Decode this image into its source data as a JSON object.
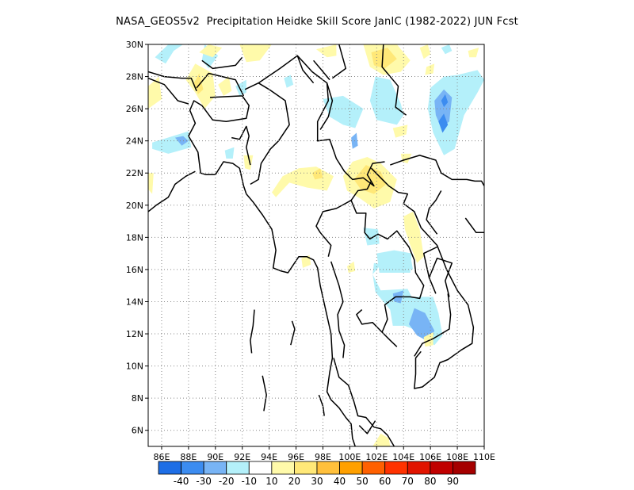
{
  "title": "NASA_GEOS5v2  Precipitation Heidke Skill Score JanIC (1982-2022) JUN Fcst",
  "map": {
    "lat_ticks": [
      "30N",
      "28N",
      "26N",
      "24N",
      "22N",
      "20N",
      "18N",
      "16N",
      "14N",
      "12N",
      "10N",
      "8N",
      "6N"
    ],
    "lon_ticks": [
      "86E",
      "88E",
      "90E",
      "92E",
      "94E",
      "96E",
      "98E",
      "100E",
      "102E",
      "104E",
      "106E",
      "108E",
      "110E"
    ],
    "lat_range": [
      5,
      30
    ],
    "lon_range": [
      85,
      110
    ],
    "grid": "dotted"
  },
  "colorbar": {
    "labels": [
      "-40",
      "-30",
      "-20",
      "-10",
      "10",
      "20",
      "30",
      "40",
      "50",
      "60",
      "70",
      "80",
      "90"
    ],
    "colors": [
      "#1e6ee6",
      "#3c8cf0",
      "#78b4f5",
      "#b4f0fa",
      "#ffffff",
      "#fffaaa",
      "#ffe878",
      "#ffc03c",
      "#ffa000",
      "#ff6000",
      "#ff3200",
      "#e11400",
      "#c00000",
      "#a50000"
    ]
  },
  "areas": [
    {
      "name": "skill-patch-positive",
      "color": "#fffaaa"
    },
    {
      "name": "skill-patch-positive-strong",
      "color": "#ffe878"
    },
    {
      "name": "skill-patch-negative",
      "color": "#b4f0fa"
    },
    {
      "name": "skill-patch-negative-strong",
      "color": "#78b4f5"
    },
    {
      "name": "skill-patch-negative-strongest",
      "color": "#3c8cf0"
    }
  ]
}
